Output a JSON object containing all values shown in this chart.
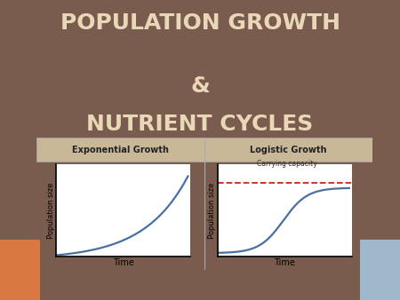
{
  "title_line1": "POPULATION GROWTH",
  "title_line2": "&",
  "title_line3": "NUTRIENT CYCLES",
  "title_color": "#e8d8b8",
  "bg_color": "#7a5c4e",
  "panel_bg": "#f0ead8",
  "header_bg": "#c8b898",
  "chart_bg": "#ffffff",
  "curve_color": "#4a6fa5",
  "dashed_color": "#cc2222",
  "left_title": "Exponential Growth",
  "right_title": "Logistic Growth",
  "carrying_capacity_label": "Carrying capacity",
  "xlabel": "Time",
  "ylabel": "Population size",
  "accent_left": "#d97840",
  "accent_right": "#a0b8cc",
  "panel_border": "#aaaaaa"
}
